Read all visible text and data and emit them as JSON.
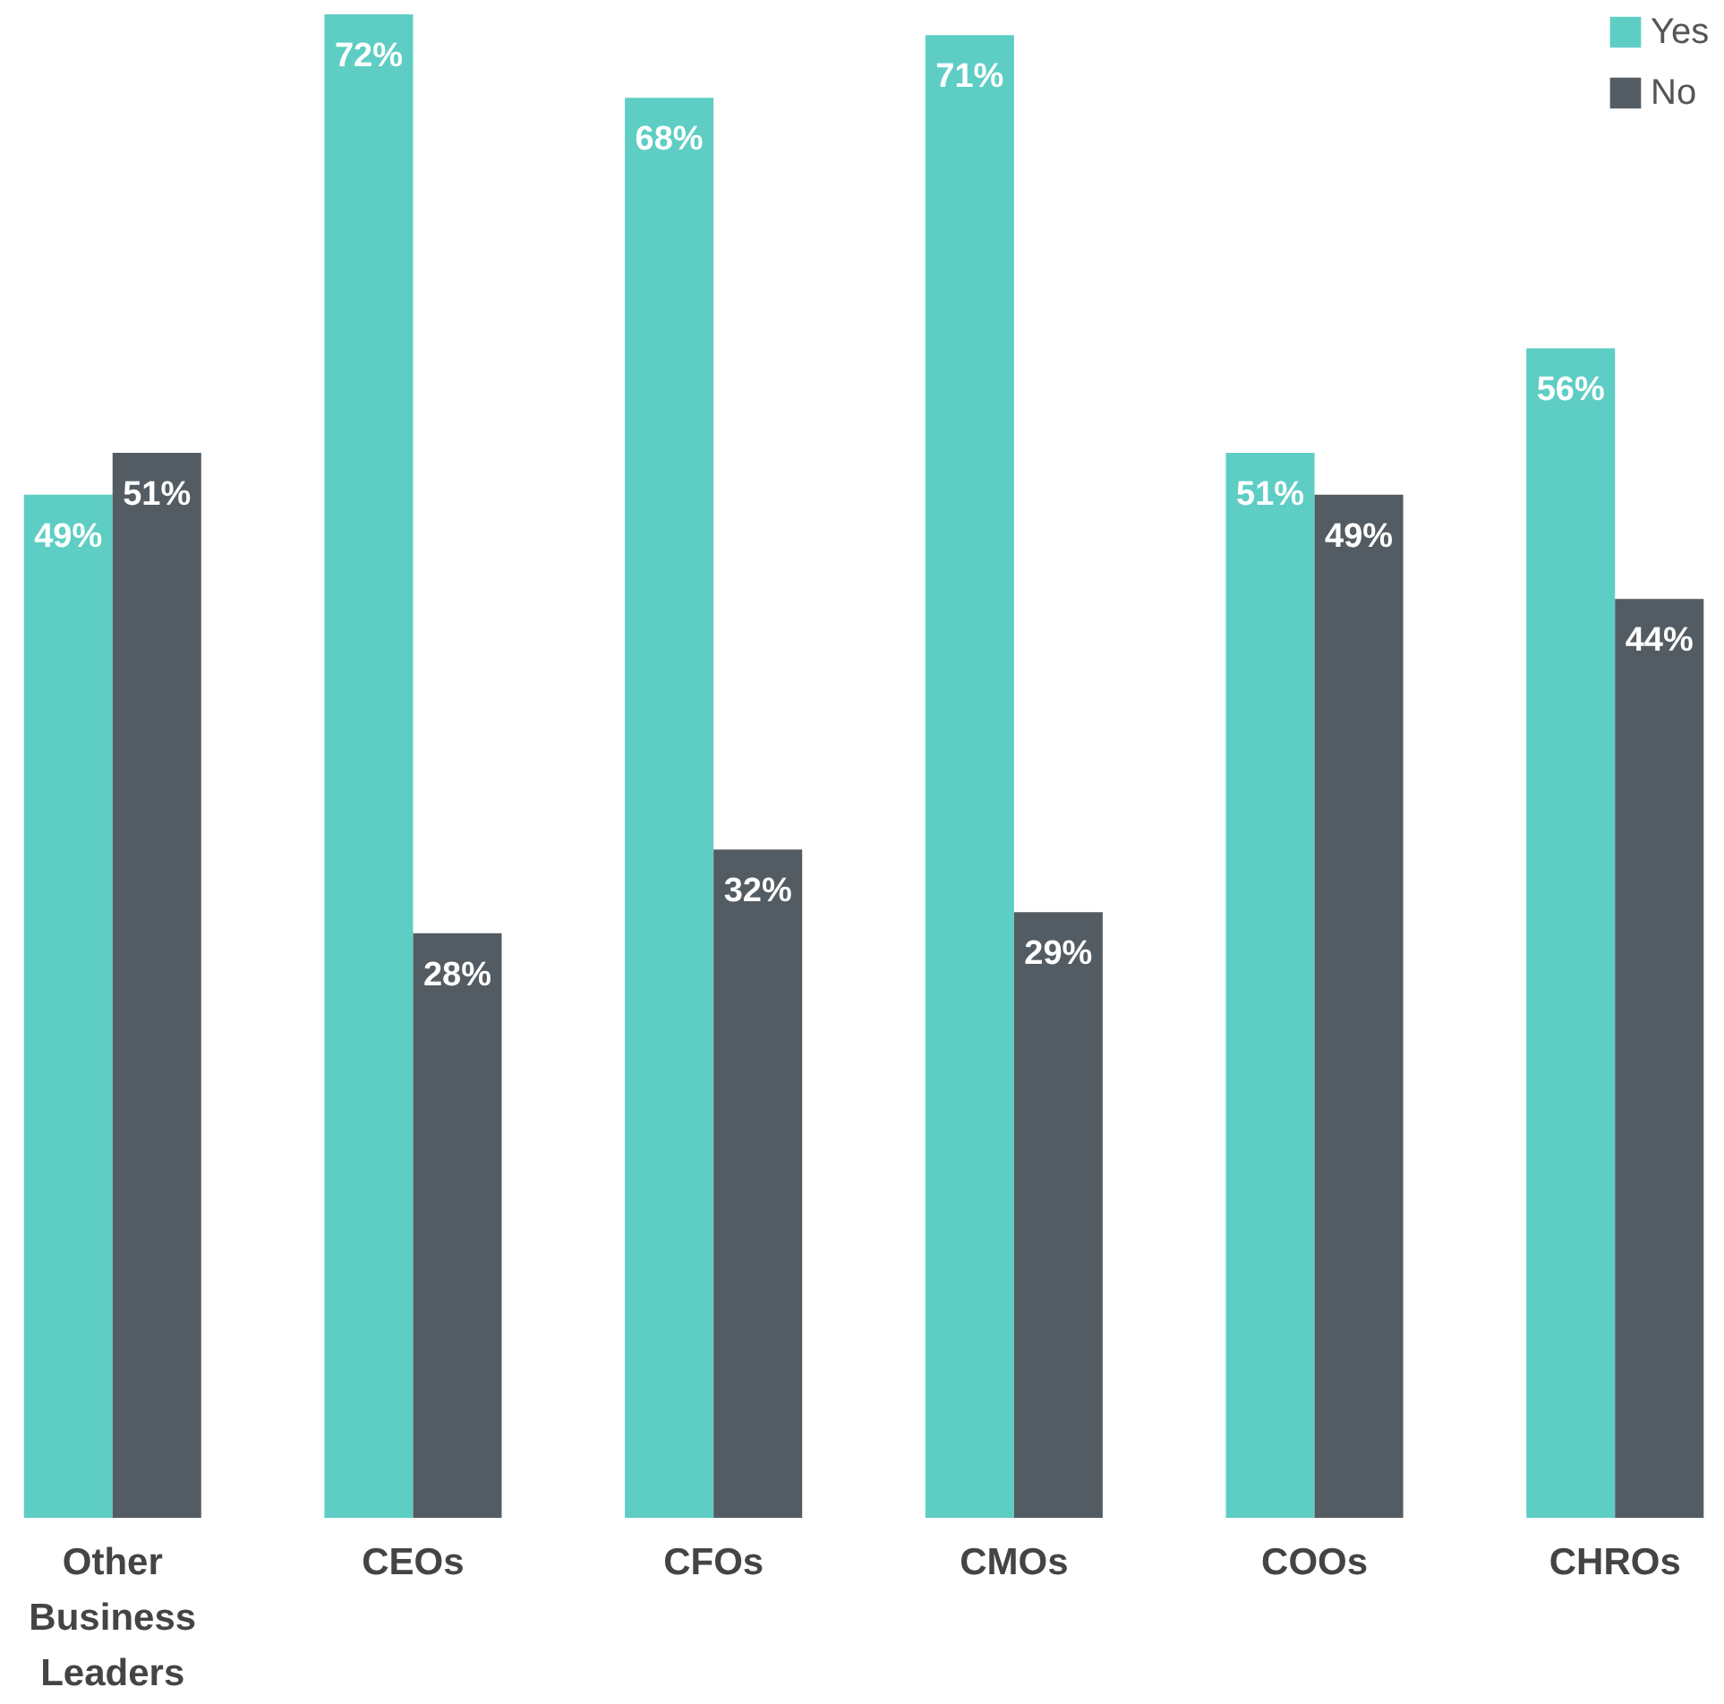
{
  "chart_data": {
    "type": "bar",
    "categories": [
      "Other Business Leaders",
      "CEOs",
      "CFOs",
      "CMOs",
      "COOs",
      "CHROs"
    ],
    "series": [
      {
        "name": "Yes",
        "color": "#5ecec4",
        "values": [
          49,
          72,
          68,
          71,
          51,
          56
        ],
        "value_labels": [
          "49%",
          "72%",
          "68%",
          "71%",
          "51%",
          "56%"
        ]
      },
      {
        "name": "No",
        "color": "#535c62",
        "values": [
          51,
          28,
          32,
          29,
          49,
          44
        ],
        "value_labels": [
          "51%",
          "28%",
          "32%",
          "29%",
          "49%",
          "44%"
        ]
      }
    ],
    "legend": "top right"
  }
}
